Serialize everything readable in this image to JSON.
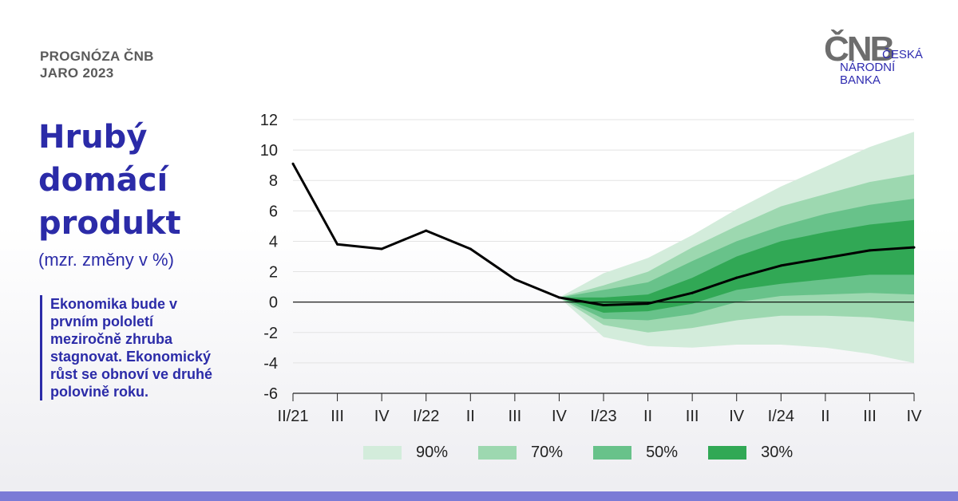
{
  "header": {
    "line1": "PROGNÓZA ČNB",
    "line2": "JARO 2023"
  },
  "logo": {
    "mark": "ČNB",
    "line1": "ČESKÁ",
    "line2": "NÁRODNÍ",
    "line3": "BANKA"
  },
  "title": {
    "line1": "Hrubý",
    "line2": "domácí",
    "line3": "produkt"
  },
  "subtitle": "(mzr. změny v %)",
  "note": "Ekonomika bude v prvním pololetí meziročně zhruba stagnovat. Ekonomický růst se obnoví ve druhé polovině roku.",
  "colors": {
    "accent": "#2b2ba8",
    "band90": "#d3ecdb",
    "band70": "#9dd8b0",
    "band50": "#68c28a",
    "band30": "#31a855",
    "line": "#000000"
  },
  "chart_data": {
    "type": "area",
    "categories": [
      "II/21",
      "III",
      "IV",
      "I/22",
      "II",
      "III",
      "IV",
      "I/23",
      "II",
      "III",
      "IV",
      "I/24",
      "II",
      "III",
      "IV"
    ],
    "ylim": [
      -6,
      12
    ],
    "yticks": [
      12,
      10,
      8,
      6,
      4,
      2,
      0,
      -2,
      -4,
      -6
    ],
    "grid": true,
    "series": [
      {
        "values": [
          9.1,
          3.8,
          3.5,
          4.7,
          3.5,
          1.5,
          0.3,
          -0.2,
          -0.1,
          0.6,
          1.6,
          2.4,
          2.9,
          3.4,
          3.6
        ]
      }
    ],
    "fan_start_index": 6,
    "bands": [
      {
        "name": "90%",
        "lower": [
          0.3,
          -2.3,
          -2.9,
          -3.0,
          -2.8,
          -2.8,
          -3.0,
          -3.4,
          -4.0
        ],
        "upper": [
          0.3,
          1.9,
          2.9,
          4.4,
          6.1,
          7.6,
          8.9,
          10.2,
          11.2
        ]
      },
      {
        "name": "70%",
        "lower": [
          0.3,
          -1.5,
          -2.0,
          -1.7,
          -1.2,
          -0.9,
          -0.9,
          -1.0,
          -1.3
        ],
        "upper": [
          0.3,
          1.1,
          2.0,
          3.6,
          5.0,
          6.3,
          7.1,
          7.9,
          8.4
        ]
      },
      {
        "name": "50%",
        "lower": [
          0.3,
          -1.1,
          -1.2,
          -0.8,
          0.0,
          0.4,
          0.5,
          0.6,
          0.5
        ],
        "upper": [
          0.3,
          0.8,
          1.3,
          2.7,
          4.0,
          5.0,
          5.8,
          6.4,
          6.8
        ]
      },
      {
        "name": "30%",
        "lower": [
          0.3,
          -0.7,
          -0.6,
          -0.1,
          0.8,
          1.2,
          1.5,
          1.8,
          1.8
        ],
        "upper": [
          0.3,
          0.3,
          0.5,
          1.6,
          3.0,
          4.0,
          4.6,
          5.1,
          5.4
        ]
      }
    ],
    "legend": [
      "90%",
      "70%",
      "50%",
      "30%"
    ],
    "legend_position": "bottom"
  }
}
